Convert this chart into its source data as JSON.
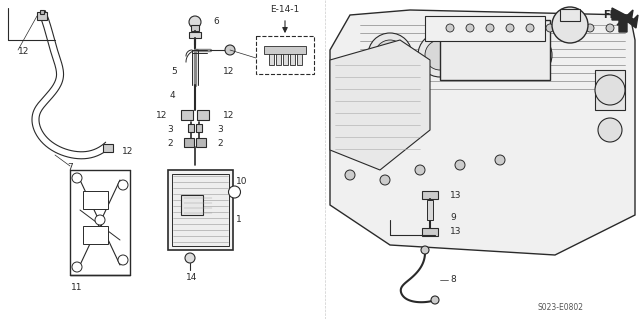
{
  "bg_color": "#ffffff",
  "fig_width": 6.4,
  "fig_height": 3.19,
  "dpi": 100,
  "diagram_code": "S023-E0802",
  "line_color": "#2a2a2a",
  "label_fontsize": 6.5
}
